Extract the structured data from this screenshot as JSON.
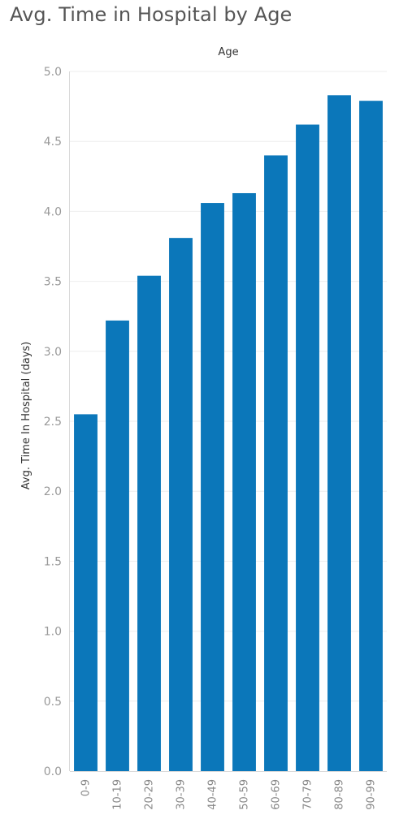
{
  "chart_data": {
    "type": "bar",
    "title": "Avg. Time in Hospital by Age",
    "xlabel": "Age",
    "ylabel": "Avg. Time In Hospital (days)",
    "categories": [
      "0-9",
      "10-19",
      "20-29",
      "30-39",
      "40-49",
      "50-59",
      "60-69",
      "70-79",
      "80-89",
      "90-99"
    ],
    "values": [
      2.55,
      3.22,
      3.54,
      3.81,
      4.06,
      4.13,
      4.4,
      4.62,
      4.83,
      4.79
    ],
    "ylim": [
      0,
      5.0
    ],
    "yticks": [
      "0.0",
      "0.5",
      "1.0",
      "1.5",
      "2.0",
      "2.5",
      "3.0",
      "3.5",
      "4.0",
      "4.5",
      "5.0"
    ],
    "grid": true,
    "xlabel_position": "top",
    "bar_color": "#0B77BA"
  }
}
